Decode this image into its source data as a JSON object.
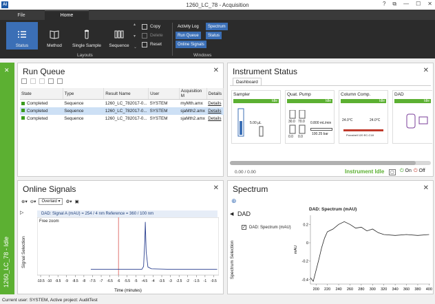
{
  "window": {
    "title": "1260_LC_78 - Acquisition",
    "app_icon": "AI",
    "help": "?",
    "restore": "⧉",
    "minimize": "—",
    "maximize": "☐",
    "close": "✕"
  },
  "ribbon": {
    "tabs": [
      {
        "label": "File"
      },
      {
        "label": "Home"
      }
    ],
    "buttons": [
      {
        "label": "Status",
        "icon": "list-icon"
      },
      {
        "label": "Method",
        "icon": "book-icon"
      },
      {
        "label": "Single Sample",
        "icon": "vial-icon"
      },
      {
        "label": "Sequence",
        "icon": "vials-icon"
      }
    ],
    "small": [
      {
        "label": "Copy"
      },
      {
        "label": "Delete"
      },
      {
        "label": "Reset"
      }
    ],
    "groups": {
      "layouts": "Layouts",
      "windows": "Windows"
    },
    "windows": [
      {
        "label": "Activity Log"
      },
      {
        "label": "Spectrum"
      },
      {
        "label": "Run Queue"
      },
      {
        "label": "Status"
      },
      {
        "label": "Online Signals"
      }
    ]
  },
  "sidebar": {
    "label": "1260_LC_78 - Idle"
  },
  "run_queue": {
    "title": "Run Queue",
    "columns": [
      "State",
      "Type",
      "Result Name",
      "User",
      "Acquisition M",
      "Details"
    ],
    "rows": [
      {
        "state": "Completed",
        "type": "Sequence",
        "result": "1260_LC_782017-0...",
        "user": "SYSTEM",
        "acq": "myMth.amx",
        "details": "Details"
      },
      {
        "state": "Completed",
        "type": "Sequence",
        "result": "1260_LC_782017-0...",
        "user": "SYSTEM",
        "acq": "sjaMth2.amx",
        "details": "Details"
      },
      {
        "state": "Completed",
        "type": "Sequence",
        "result": "1260_LC_782017-0...",
        "user": "SYSTEM",
        "acq": "sjaMth2.amx",
        "details": "Details"
      }
    ]
  },
  "instrument_status": {
    "title": "Instrument Status",
    "tab": "Dashboard",
    "modules": [
      {
        "name": "Sampler",
        "state": "Idle",
        "readout": "5.00 µL"
      },
      {
        "name": "Quat. Pump",
        "state": "Idle",
        "readout": "0.800 mL/min",
        "pressure": "100.25 bar",
        "percents": [
          "30.0",
          "70.0",
          "0.0",
          "0.0"
        ]
      },
      {
        "name": "Column Comp.",
        "state": "Idle",
        "temps": [
          "24.0°C",
          "24.0°C"
        ],
        "column": "Poroshell 120 EC-C18"
      },
      {
        "name": "DAD",
        "state": "Idle"
      }
    ],
    "progress": "0.00 / 0.00",
    "status_text": "Instrument Idle",
    "on": "On",
    "off": "Off"
  },
  "online_signals": {
    "title": "Online Signals",
    "overlay": "Overlaid",
    "signal_header": "DAD: Signal A (mAU) = 254 / 4 nm Reference = 360 / 100 nm",
    "free_zoom": "Free zoom",
    "ylabel": "Signal Selection",
    "xlabel": "Time (minutes)",
    "xticks": [
      "-10.5",
      "-10",
      "-9.5",
      "-9",
      "-8.5",
      "-8",
      "-7.5",
      "-7",
      "-6.5",
      "-6",
      "-5.5",
      "-5",
      "-4.5",
      "-4",
      "-3.5",
      "-3",
      "-2.5",
      "-2",
      "-1.5",
      "-1",
      "-0.5"
    ]
  },
  "spectrum": {
    "title": "Spectrum",
    "dad": "DAD",
    "checkbox_label": "DAD: Spectrum (mAU)",
    "side_label": "Spectrum Selection",
    "chart_title": "DAD: Spectrum (mAU)",
    "ylabel": "mAU",
    "yticks": [
      "0.2",
      "0",
      "-0.2",
      "-0.4"
    ],
    "xticks": [
      "200",
      "220",
      "240",
      "260",
      "280",
      "300",
      "320",
      "340",
      "360",
      "380",
      "400"
    ]
  },
  "footer": {
    "text": "Current user: SYSTEM, Active project: AuditTest"
  },
  "chart_data": [
    {
      "type": "line",
      "title": "DAD: Signal A (mAU) = 254 / 4 nm Reference = 360 / 100 nm",
      "xlabel": "Time (minutes)",
      "ylabel": "",
      "xlim": [
        -10.7,
        -0.2
      ],
      "ylim": [
        0,
        100
      ],
      "cursor_x": -6,
      "series": [
        {
          "x": [
            -7.6,
            -7.0,
            -6.0,
            -5.0,
            -4.65,
            -4.55,
            -4.48,
            -4.45,
            -4.4,
            -4.3,
            -4.1,
            -3.0,
            -1.0,
            -0.3
          ],
          "y": [
            10,
            10,
            10,
            10,
            10,
            15,
            60,
            92,
            40,
            14,
            11,
            10,
            10,
            10
          ]
        }
      ]
    },
    {
      "type": "line",
      "title": "DAD: Spectrum (mAU)",
      "xlabel": "",
      "ylabel": "mAU",
      "xlim": [
        190,
        402
      ],
      "ylim": [
        -0.45,
        0.3
      ],
      "series": [
        {
          "x": [
            190,
            195,
            200,
            205,
            210,
            215,
            220,
            230,
            240,
            250,
            260,
            270,
            280,
            290,
            300,
            310,
            320,
            340,
            360,
            380,
            400
          ],
          "y": [
            -0.38,
            -0.42,
            -0.3,
            -0.18,
            -0.05,
            0.05,
            0.12,
            0.15,
            0.2,
            0.23,
            0.2,
            0.16,
            0.17,
            0.13,
            0.15,
            0.11,
            0.09,
            0.08,
            0.09,
            0.08,
            0.09
          ]
        }
      ]
    }
  ]
}
